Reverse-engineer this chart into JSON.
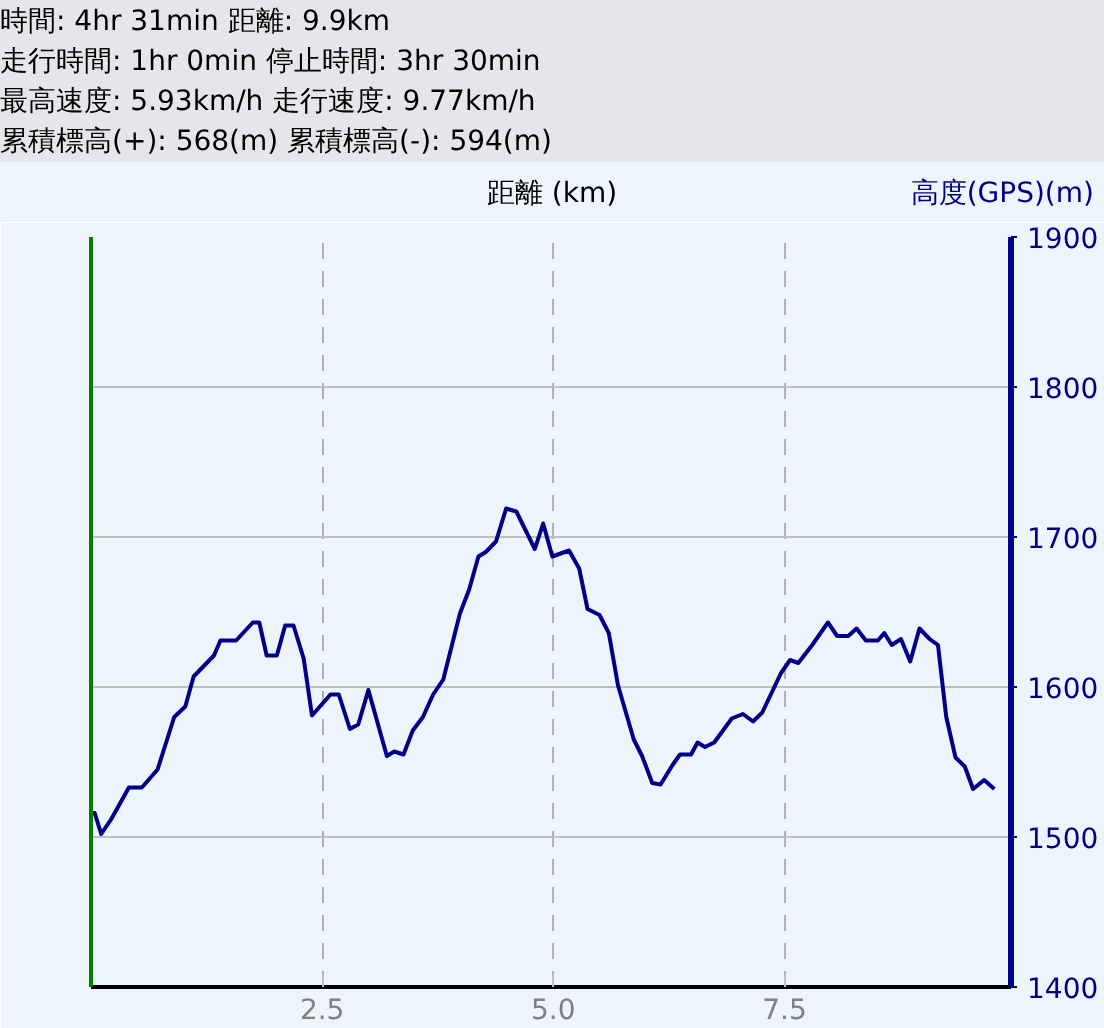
{
  "chart_data": {
    "type": "line",
    "annotations": [
      "時間: 4hr 31min  距離: 9.9km",
      "走行時間: 1hr 0min  停止時間: 3hr 30min",
      "最高速度: 5.93km/h  走行速度: 9.77km/h",
      "累積標高(+): 568(m)  累積標高(-): 594(m)"
    ],
    "xlabel": "距離 (km)",
    "ylabel": "高度(GPS)(m)",
    "x": [
      0.0,
      0.04,
      0.11,
      0.22,
      0.41,
      0.55,
      0.72,
      0.9,
      1.02,
      1.11,
      1.33,
      1.4,
      1.57,
      1.75,
      1.82,
      1.9,
      2.01,
      2.1,
      2.19,
      2.3,
      2.39,
      2.59,
      2.68,
      2.8,
      2.89,
      3.0,
      3.2,
      3.28,
      3.38,
      3.48,
      3.59,
      3.7,
      3.81,
      3.99,
      4.09,
      4.19,
      4.27,
      4.38,
      4.49,
      4.6,
      4.8,
      4.89,
      4.99,
      5.17,
      5.28,
      5.37,
      5.5,
      5.6,
      5.7,
      5.87,
      5.96,
      6.07,
      6.16,
      6.29,
      6.37,
      6.49,
      6.56,
      6.64,
      6.74,
      6.93,
      7.05,
      7.16,
      7.26,
      7.46,
      7.56,
      7.65,
      7.8,
      7.97,
      8.07,
      8.19,
      8.28,
      8.38,
      8.51,
      8.58,
      8.66,
      8.76,
      8.86,
      8.96,
      9.07,
      9.16,
      9.25,
      9.35,
      9.45,
      9.54,
      9.66,
      9.77
    ],
    "series": [
      {
        "color": "#000088",
        "values": [
          1516,
          1516,
          1502,
          1512,
          1533,
          1533,
          1545,
          1580,
          1587,
          1607,
          1621,
          1631,
          1631,
          1643,
          1643,
          1621,
          1621,
          1641,
          1641,
          1619,
          1581,
          1595,
          1595,
          1572,
          1575,
          1598,
          1554,
          1557,
          1555,
          1571,
          1580,
          1595,
          1605,
          1649,
          1665,
          1687,
          1690,
          1697,
          1719,
          1717,
          1692,
          1709,
          1687,
          1691,
          1679,
          1652,
          1648,
          1636,
          1601,
          1565,
          1554,
          1536,
          1535,
          1548,
          1555,
          1555,
          1563,
          1560,
          1563,
          1579,
          1582,
          1577,
          1583,
          1609,
          1618,
          1616,
          1628,
          1643,
          1634,
          1634,
          1639,
          1631,
          1631,
          1636,
          1628,
          1632,
          1617,
          1639,
          1632,
          1628,
          1580,
          1553,
          1547,
          1532,
          1538,
          1532
        ]
      }
    ],
    "xlim": [
      0,
      9.95
    ],
    "ylim": [
      1400,
      1900
    ],
    "xticks": [
      2.5,
      {
        "value": 5,
        "label": "5.0"
      },
      7.5
    ],
    "yticks": [
      1400,
      1500,
      1600,
      1700,
      1800,
      1900
    ],
    "grid": true,
    "line_style": "solid",
    "marker": "none"
  }
}
